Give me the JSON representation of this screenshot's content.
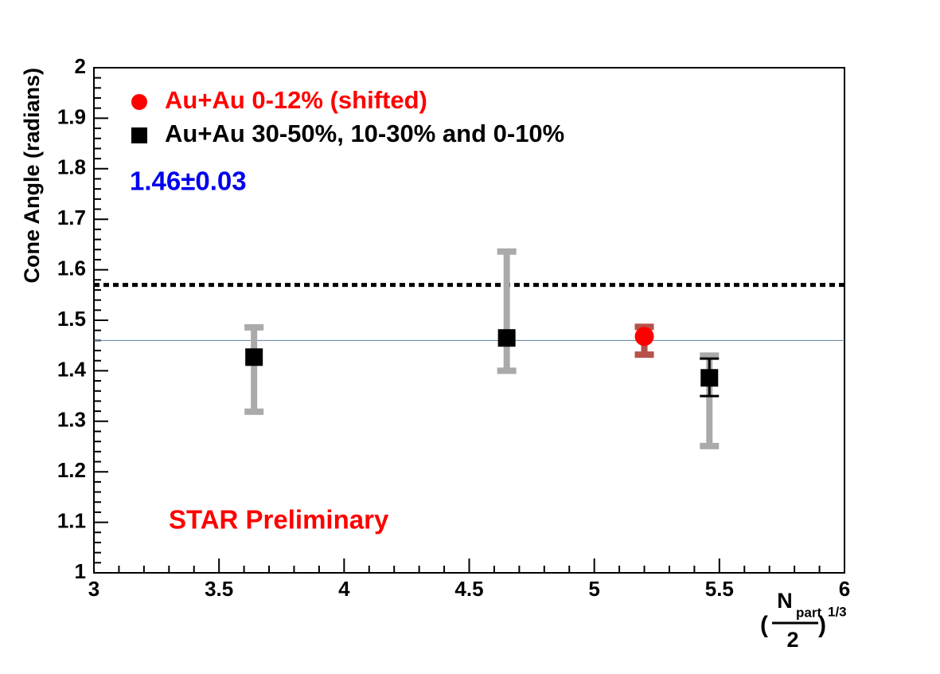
{
  "chart_data": {
    "type": "errorbar",
    "y_label": "Cone Angle (radians)",
    "x_label": {
      "open": "(",
      "numerator": "N",
      "subscript": "part",
      "denominator": "2",
      "close": ")",
      "exponent": "1/3"
    },
    "xlim": [
      3,
      6
    ],
    "ylim": [
      1,
      2
    ],
    "xticks": [
      3,
      3.5,
      4,
      4.5,
      5,
      5.5,
      6
    ],
    "yticks": [
      1,
      1.1,
      1.2,
      1.3,
      1.4,
      1.5,
      1.6,
      1.7,
      1.8,
      1.9,
      2
    ],
    "xminorticks": [
      3.1,
      3.2,
      3.3,
      3.4,
      3.6,
      3.7,
      3.8,
      3.9,
      4.1,
      4.2,
      4.3,
      4.4,
      4.6,
      4.7,
      4.8,
      4.9,
      5.1,
      5.2,
      5.3,
      5.4,
      5.6,
      5.7,
      5.8,
      5.9
    ],
    "yminorticks": [
      1.02,
      1.04,
      1.06,
      1.08,
      1.12,
      1.14,
      1.16,
      1.18,
      1.22,
      1.24,
      1.26,
      1.28,
      1.32,
      1.34,
      1.36,
      1.38,
      1.42,
      1.44,
      1.46,
      1.48,
      1.52,
      1.54,
      1.56,
      1.58,
      1.62,
      1.64,
      1.66,
      1.68,
      1.72,
      1.74,
      1.76,
      1.78,
      1.82,
      1.84,
      1.86,
      1.88,
      1.92,
      1.94,
      1.96,
      1.98
    ],
    "reference_lines": [
      {
        "y": 1.57,
        "color": "#000000",
        "style": "dotted"
      },
      {
        "y": 1.46,
        "color": "#5a7fa0",
        "style": "solid"
      }
    ],
    "series": [
      {
        "name": "Au+Au 0-12% (shifted)",
        "color": "#ff0000",
        "marker": "circle",
        "x": [
          5.2
        ],
        "values": [
          1.468
        ],
        "err_low": [
          1.432
        ],
        "err_high": [
          1.487
        ],
        "err_color": "#b5524a"
      },
      {
        "name": "Au+Au 30-50%, 10-30% and 0-10%",
        "color": "#000000",
        "marker": "square",
        "x": [
          3.64,
          4.65,
          5.46
        ],
        "values": [
          1.427,
          1.465,
          1.386
        ],
        "sys_low": [
          1.319,
          1.4,
          1.251
        ],
        "sys_high": [
          1.486,
          1.636,
          1.43
        ],
        "sys_color": "#aaaaaa",
        "stat_low": [
          null,
          null,
          1.35
        ],
        "stat_high": [
          null,
          null,
          1.424
        ]
      }
    ],
    "annotations": [
      {
        "text": "1.46±0.03",
        "color": "#0000ee"
      },
      {
        "text": "STAR Preliminary",
        "color": "#ff0000"
      }
    ]
  }
}
